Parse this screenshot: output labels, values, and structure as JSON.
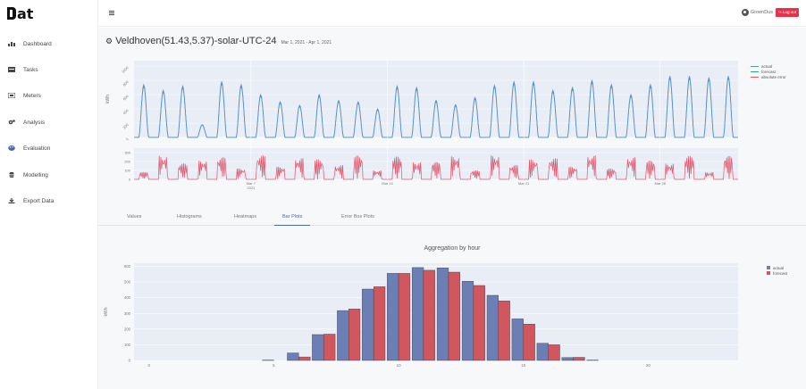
{
  "app": {
    "logo": "at"
  },
  "sidebar": {
    "items": [
      {
        "label": "Dashboard",
        "icon": "chart-icon"
      },
      {
        "label": "Tasks",
        "icon": "tasks-icon"
      },
      {
        "label": "Meters",
        "icon": "meters-icon"
      },
      {
        "label": "Analysis",
        "icon": "cogs-icon"
      },
      {
        "label": "Evaluation",
        "icon": "palette-icon"
      },
      {
        "label": "Modelling",
        "icon": "database-icon"
      },
      {
        "label": "Export Data",
        "icon": "download-icon"
      }
    ]
  },
  "header": {
    "username": "GroenDus",
    "logout_label": "Log out"
  },
  "page": {
    "title": "Veldhoven(51.43,5.37)-solar-UTC-24",
    "date_range": "Mar 1, 2021 - Apr 1, 2021"
  },
  "top_chart": {
    "ylabel": "kWh",
    "yticks": [
      "0",
      "200",
      "400",
      "600",
      "800",
      "1000"
    ],
    "legend": [
      {
        "name": "actual",
        "color": "#5b8ed6"
      },
      {
        "name": "forecast",
        "color": "#3aa07a"
      },
      {
        "name": "absolute error",
        "color": "#e0556a"
      }
    ],
    "error_ticks": [
      "0",
      "100",
      "200",
      "300"
    ],
    "x_ticks": [
      "Mar 7\n2021",
      "Mar 14",
      "Mar 21",
      "Mar 28"
    ]
  },
  "tabs": [
    "Values",
    "Histograms",
    "Heatmaps",
    "Bar Plots",
    "Error Box Plots"
  ],
  "active_tab": "Bar Plots",
  "chart_data": {
    "type": "bar",
    "title": "Aggregation by hour",
    "xlabel": "",
    "ylabel": "kWh",
    "categories": [
      0,
      1,
      2,
      3,
      4,
      5,
      6,
      7,
      8,
      9,
      10,
      11,
      12,
      13,
      14,
      15,
      16,
      17,
      18,
      19,
      20,
      21,
      22,
      23
    ],
    "x_ticks": [
      0,
      5,
      10,
      15,
      20
    ],
    "ylim": [
      0,
      620
    ],
    "yticks": [
      0,
      100,
      200,
      300,
      400,
      500,
      600
    ],
    "series": [
      {
        "name": "actual",
        "color": "#6b7fb5",
        "values": [
          0,
          0,
          0,
          0,
          0,
          2,
          48,
          165,
          318,
          455,
          555,
          592,
          590,
          505,
          415,
          265,
          110,
          18,
          2,
          0,
          0,
          0,
          0,
          0
        ]
      },
      {
        "name": "forecast",
        "color": "#d0575d",
        "values": [
          0,
          0,
          0,
          0,
          0,
          0,
          22,
          168,
          328,
          470,
          555,
          575,
          563,
          478,
          380,
          232,
          100,
          20,
          0,
          0,
          0,
          0,
          0,
          0
        ]
      }
    ],
    "legend_position": "top-right",
    "grid": true
  }
}
